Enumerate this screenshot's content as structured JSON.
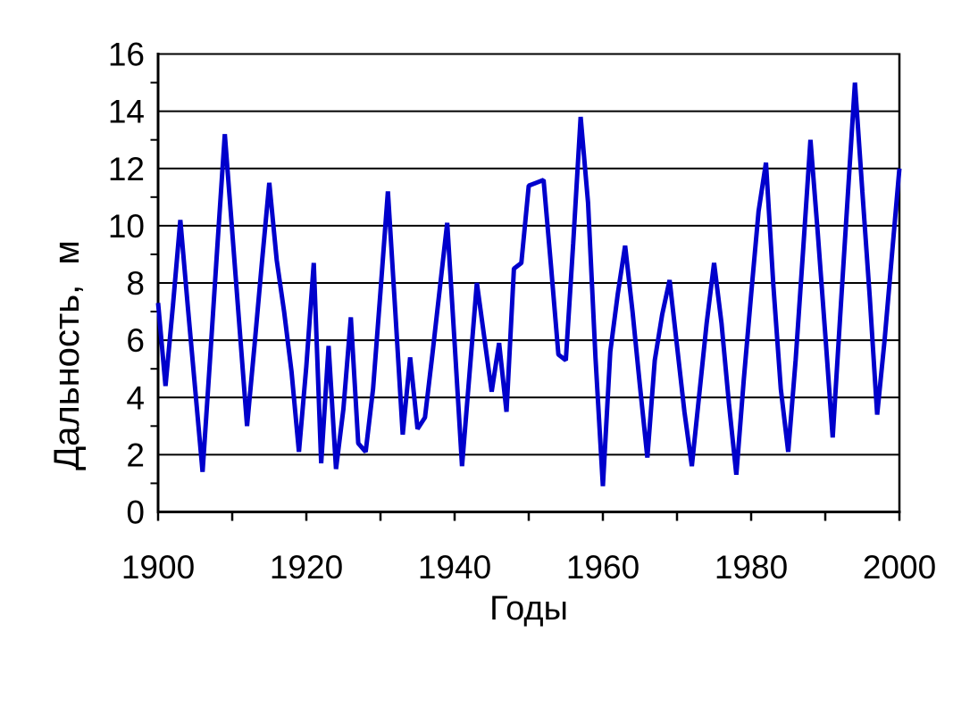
{
  "chart_data": {
    "type": "line",
    "title": "",
    "xlabel": "Годы",
    "ylabel": "Дальность,  м",
    "x_start": 1900,
    "x_end": 2000,
    "x_step": 1,
    "xlim": [
      1900,
      2000
    ],
    "ylim": [
      0,
      16
    ],
    "x_major_ticks": [
      1900,
      1920,
      1940,
      1960,
      1980,
      2000
    ],
    "x_minor_ticks": [
      1910,
      1930,
      1950,
      1970,
      1990
    ],
    "y_major_ticks": [
      0,
      2,
      4,
      6,
      8,
      10,
      12,
      14,
      16
    ],
    "y_minor_ticks": [
      1,
      3,
      5,
      7,
      9,
      11,
      13,
      15
    ],
    "grid": "horizontal-only",
    "legend": "none",
    "series": [
      {
        "values": [
          7.3,
          4.4,
          7.2,
          10.2,
          7.2,
          4.3,
          1.4,
          5.3,
          9.3,
          13.2,
          9.8,
          6.4,
          3.0,
          5.8,
          8.7,
          11.5,
          8.8,
          7.0,
          4.9,
          2.1,
          5.1,
          8.7,
          1.7,
          5.8,
          1.5,
          3.6,
          6.8,
          2.4,
          2.1,
          4.3,
          7.7,
          11.2,
          7.0,
          2.7,
          5.4,
          2.9,
          3.3,
          5.5,
          7.8,
          10.1,
          5.9,
          1.6,
          4.8,
          8.0,
          6.1,
          4.2,
          5.9,
          3.5,
          8.5,
          8.7,
          11.4,
          11.5,
          11.6,
          8.6,
          5.5,
          5.3,
          9.4,
          13.8,
          10.8,
          5.4,
          0.9,
          5.6,
          7.6,
          9.3,
          7.0,
          4.4,
          1.9,
          5.3,
          6.9,
          8.1,
          5.8,
          3.5,
          1.6,
          4.1,
          6.6,
          8.7,
          6.6,
          3.8,
          1.3,
          4.6,
          7.6,
          10.5,
          12.2,
          7.9,
          4.3,
          2.1,
          5.3,
          9.1,
          13.0,
          9.7,
          6.2,
          2.6,
          6.8,
          10.9,
          15.0,
          11.2,
          7.5,
          3.4,
          6.0,
          9.0,
          12.0
        ]
      }
    ],
    "colors": {
      "line": "#0000CC",
      "axis": "#000000",
      "grid": "#000000",
      "text": "#000000",
      "background": "#FFFFFF"
    }
  }
}
